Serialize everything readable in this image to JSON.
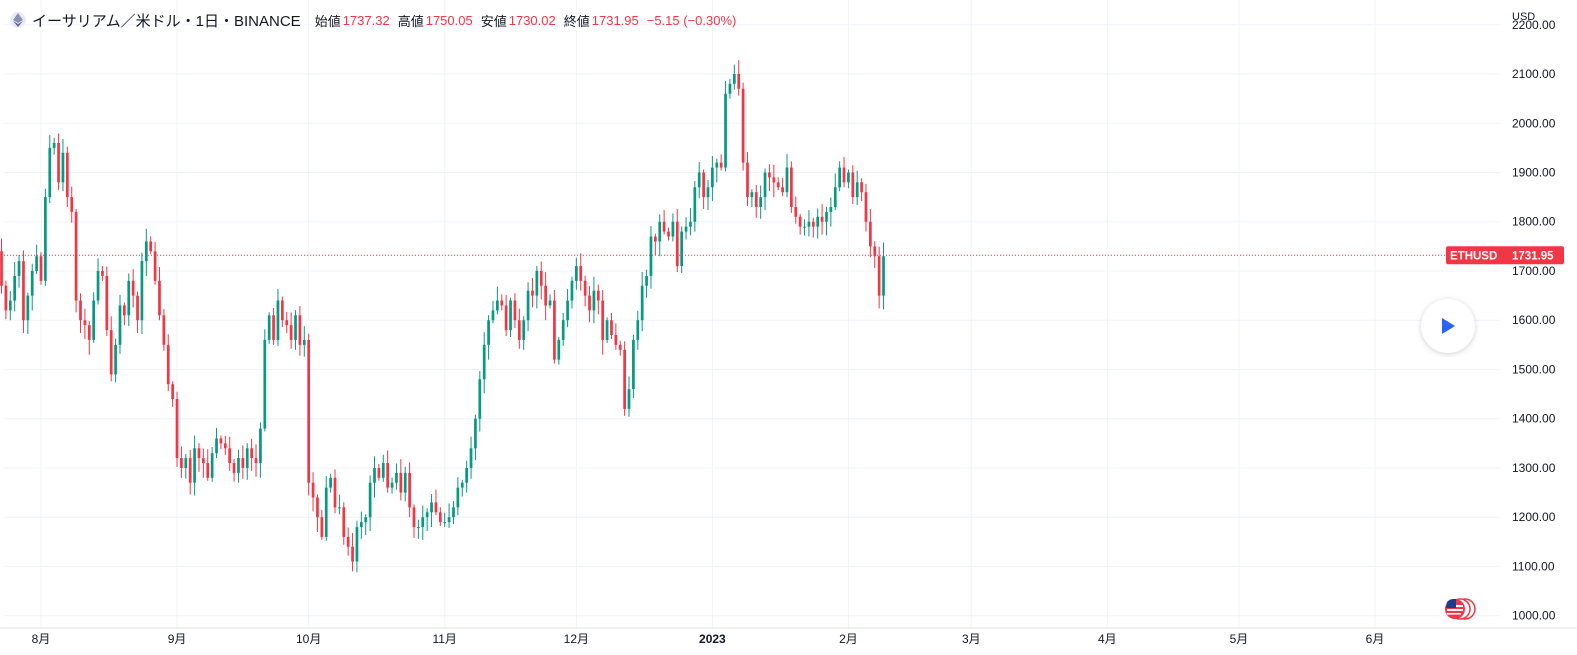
{
  "header": {
    "symbol_title": "イーサリアム／米ドル・1日・BINANCE",
    "open_label": "始値",
    "open_value": "1737.32",
    "high_label": "高値",
    "high_value": "1750.05",
    "low_label": "安値",
    "low_value": "1730.02",
    "close_label": "終値",
    "close_value": "1731.95",
    "change_value": "−5.15 (−0.30%)"
  },
  "colors": {
    "up": "#089981",
    "down": "#f23645",
    "grid": "#f0f3fa",
    "axis_text": "#131722",
    "price_line": "#f23645"
  },
  "icons": {
    "coin": "ethereum-icon",
    "play": "play-icon",
    "flag": "us-flag-icon"
  },
  "chart_data": {
    "type": "candlestick",
    "currency_label": "USD",
    "symbol": "ETHUSD",
    "last_price": 1731.95,
    "last_price_label": "1731.95",
    "ylim": [
      975,
      2230
    ],
    "y_ticks": [
      1000,
      1100,
      1200,
      1300,
      1400,
      1500,
      1600,
      1700,
      1800,
      1900,
      2000,
      2100,
      2200
    ],
    "y_tick_labels": [
      "1000.00",
      "1100.00",
      "1200.00",
      "1300.00",
      "1400.00",
      "1500.00",
      "1600.00",
      "1700.00",
      "1800.00",
      "1900.00",
      "2000.00",
      "2100.00",
      "2200.00"
    ],
    "x_ticks": [
      {
        "date": "2022-08-01",
        "label": "8月"
      },
      {
        "date": "2022-09-01",
        "label": "9月"
      },
      {
        "date": "2022-10-01",
        "label": "10月"
      },
      {
        "date": "2022-11-01",
        "label": "11月"
      },
      {
        "date": "2022-12-01",
        "label": "12月"
      },
      {
        "date": "2023-01-01",
        "label": "2023"
      },
      {
        "date": "2023-02-01",
        "label": "2月"
      },
      {
        "date": "2023-03-01",
        "label": "3月"
      },
      {
        "date": "2023-04-01",
        "label": "4月"
      },
      {
        "date": "2023-05-01",
        "label": "5月"
      },
      {
        "date": "2023-06-01",
        "label": "6月"
      }
    ],
    "first_date": "2022-07-18",
    "close_series": [
      1560,
      1430,
      1590,
      1700,
      1740,
      1670,
      1620,
      1640,
      1690,
      1720,
      1600,
      1650,
      1700,
      1730,
      1680,
      1850,
      1950,
      1960,
      1880,
      1940,
      1850,
      1820,
      1640,
      1600,
      1590,
      1560,
      1640,
      1700,
      1690,
      1580,
      1490,
      1550,
      1630,
      1610,
      1680,
      1650,
      1600,
      1720,
      1760,
      1740,
      1680,
      1610,
      1550,
      1470,
      1440,
      1320,
      1300,
      1320,
      1270,
      1340,
      1320,
      1310,
      1280,
      1330,
      1360,
      1350,
      1340,
      1310,
      1290,
      1320,
      1300,
      1340,
      1320,
      1310,
      1380,
      1560,
      1610,
      1560,
      1640,
      1600,
      1590,
      1560,
      1610,
      1550,
      1560,
      1270,
      1240,
      1200,
      1160,
      1260,
      1280,
      1220,
      1220,
      1160,
      1140,
      1110,
      1180,
      1190,
      1200,
      1270,
      1300,
      1280,
      1310,
      1260,
      1270,
      1290,
      1250,
      1290,
      1220,
      1180,
      1180,
      1200,
      1210,
      1230,
      1210,
      1190,
      1190,
      1200,
      1220,
      1260,
      1270,
      1300,
      1340,
      1400,
      1480,
      1550,
      1600,
      1620,
      1640,
      1630,
      1580,
      1640,
      1600,
      1560,
      1600,
      1660,
      1650,
      1700,
      1670,
      1630,
      1640,
      1520,
      1560,
      1600,
      1640,
      1680,
      1710,
      1680,
      1650,
      1620,
      1660,
      1640,
      1560,
      1600,
      1570,
      1550,
      1540,
      1420,
      1460,
      1560,
      1600,
      1670,
      1690,
      1770,
      1760,
      1800,
      1780,
      1770,
      1800,
      1710,
      1780,
      1790,
      1800,
      1870,
      1900,
      1850,
      1870,
      1910,
      1920,
      1910,
      2060,
      2080,
      2100,
      2070,
      1920,
      1850,
      1860,
      1830,
      1850,
      1900,
      1890,
      1880,
      1870,
      1860,
      1910,
      1830,
      1810,
      1790,
      1790,
      1800,
      1790,
      1810,
      1800,
      1820,
      1830,
      1870,
      1910,
      1880,
      1900,
      1850,
      1880,
      1860,
      1800,
      1750,
      1730,
      1650,
      1730
    ]
  }
}
